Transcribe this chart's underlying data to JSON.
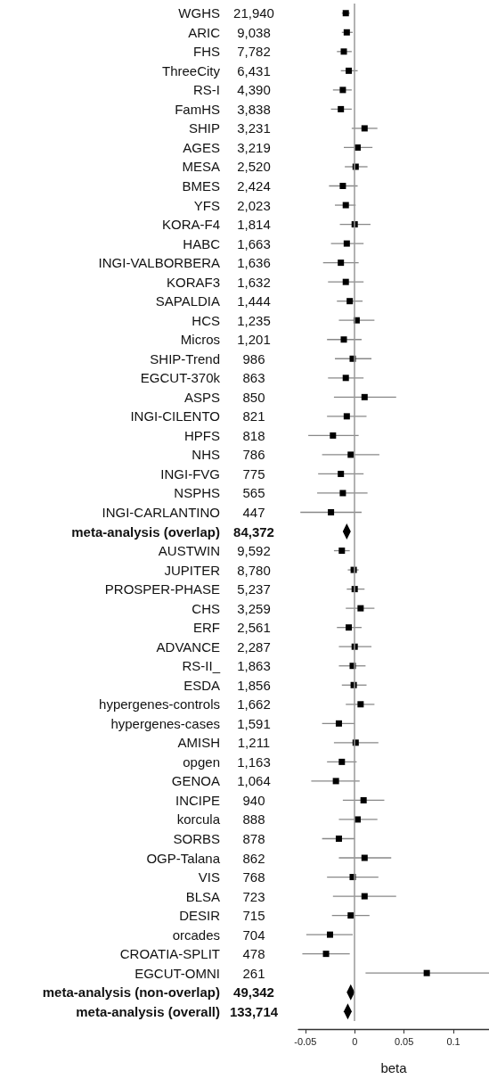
{
  "chart_data": {
    "type": "scatter",
    "orientation": "horizontal",
    "xlabel": "beta",
    "xlim": [
      -0.057,
      0.136
    ],
    "xticks": [
      -0.05,
      0,
      0.05,
      0.1
    ],
    "grid": false,
    "categories": [
      "WGHS",
      "ARIC",
      "FHS",
      "ThreeCity",
      "RS-I",
      "FamHS",
      "SHIP",
      "AGES",
      "MESA",
      "BMES",
      "YFS",
      "KORA-F4",
      "HABC",
      "INGI-VALBORBERA",
      "KORAF3",
      "SAPALDIA",
      "HCS",
      "Micros",
      "SHIP-Trend",
      "EGCUT-370k",
      "ASPS",
      "INGI-CILENTO",
      "HPFS",
      "NHS",
      "INGI-FVG",
      "NSPHS",
      "INGI-CARLANTINO",
      "meta-analysis (overlap)",
      "AUSTWIN",
      "JUPITER",
      "PROSPER-PHASE",
      "CHS",
      "ERF",
      "ADVANCE",
      "RS-II_",
      "ESDA",
      "hypergenes-controls",
      "hypergenes-cases",
      "AMISH",
      "opgen",
      "GENOA",
      "INCIPE",
      "korcula",
      "SORBS",
      "OGP-Talana",
      "VIS",
      "BLSA",
      "DESIR",
      "orcades",
      "CROATIA-SPLIT",
      "EGCUT-OMNI",
      "meta-analysis (non-overlap)",
      "meta-analysis (overall)"
    ],
    "annotations": [
      "21,940",
      "9,038",
      "7,782",
      "6,431",
      "4,390",
      "3,838",
      "3,231",
      "3,219",
      "2,520",
      "2,424",
      "2,023",
      "1,814",
      "1,663",
      "1,636",
      "1,632",
      "1,444",
      "1,235",
      "1,201",
      "986",
      "863",
      "850",
      "821",
      "818",
      "786",
      "775",
      "565",
      "447",
      "84,372",
      "9,592",
      "8,780",
      "5,237",
      "3,259",
      "2,561",
      "2,287",
      "1,863",
      "1,856",
      "1,662",
      "1,591",
      "1,211",
      "1,163",
      "1,064",
      "940",
      "888",
      "878",
      "862",
      "768",
      "723",
      "715",
      "704",
      "478",
      "261",
      "49,342",
      "133,714"
    ],
    "ref_lines": [
      {
        "axis": "x",
        "value": 0,
        "color": "#999999"
      }
    ],
    "series": [
      {
        "marker": "square",
        "color": "#000000",
        "values": [
          -0.009,
          -0.008,
          -0.011,
          -0.006,
          -0.012,
          -0.014,
          0.01,
          0.003,
          0.001,
          -0.012,
          -0.009,
          0,
          -0.008,
          -0.014,
          -0.009,
          -0.005,
          0.002,
          -0.011,
          -0.002,
          -0.009,
          0.01,
          -0.008,
          -0.022,
          -0.004,
          -0.014,
          -0.012,
          -0.024,
          null,
          -0.013,
          -0.001,
          0,
          0.006,
          -0.006,
          0,
          -0.002,
          -0.001,
          0.006,
          -0.016,
          0.001,
          -0.013,
          -0.019,
          0.009,
          0.003,
          -0.016,
          0.01,
          -0.002,
          0.01,
          -0.004,
          -0.025,
          -0.029,
          0.073,
          null,
          null
        ],
        "errors": [
          [
            -0.013,
            -0.005
          ],
          [
            -0.013,
            -0.002
          ],
          [
            -0.018,
            -0.003
          ],
          [
            -0.014,
            0.003
          ],
          [
            -0.022,
            -0.003
          ],
          [
            -0.024,
            -0.003
          ],
          [
            -0.003,
            0.023
          ],
          [
            -0.011,
            0.018
          ],
          [
            -0.01,
            0.013
          ],
          [
            -0.026,
            0.003
          ],
          [
            -0.02,
            0.001
          ],
          [
            -0.015,
            0.016
          ],
          [
            -0.024,
            0.009
          ],
          [
            -0.032,
            0.004
          ],
          [
            -0.027,
            0.009
          ],
          [
            -0.018,
            0.008
          ],
          [
            -0.016,
            0.02
          ],
          [
            -0.028,
            0.007
          ],
          [
            -0.02,
            0.017
          ],
          [
            -0.027,
            0.009
          ],
          [
            -0.021,
            0.042
          ],
          [
            -0.028,
            0.012
          ],
          [
            -0.047,
            0.004
          ],
          [
            -0.033,
            0.025
          ],
          [
            -0.037,
            0.009
          ],
          [
            -0.038,
            0.013
          ],
          [
            -0.055,
            0.007
          ],
          null,
          [
            -0.021,
            -0.005
          ],
          [
            -0.007,
            0.004
          ],
          [
            -0.008,
            0.01
          ],
          [
            -0.009,
            0.02
          ],
          [
            -0.018,
            0.007
          ],
          [
            -0.016,
            0.017
          ],
          [
            -0.016,
            0.011
          ],
          [
            -0.013,
            0.012
          ],
          [
            -0.009,
            0.02
          ],
          [
            -0.033,
            0
          ],
          [
            -0.021,
            0.024
          ],
          [
            -0.028,
            0.002
          ],
          [
            -0.044,
            0.005
          ],
          [
            -0.012,
            0.03
          ],
          [
            -0.016,
            0.023
          ],
          [
            -0.033,
            0
          ],
          [
            -0.016,
            0.037
          ],
          [
            -0.028,
            0.024
          ],
          [
            -0.022,
            0.042
          ],
          [
            -0.023,
            0.015
          ],
          [
            -0.049,
            -0.002
          ],
          [
            -0.053,
            -0.005
          ],
          [
            0.011,
            0.136
          ],
          null,
          null
        ]
      },
      {
        "marker": "diamond",
        "color": "#000000",
        "values": [
          null,
          null,
          null,
          null,
          null,
          null,
          null,
          null,
          null,
          null,
          null,
          null,
          null,
          null,
          null,
          null,
          null,
          null,
          null,
          null,
          null,
          null,
          null,
          null,
          null,
          null,
          null,
          -0.008,
          null,
          null,
          null,
          null,
          null,
          null,
          null,
          null,
          null,
          null,
          null,
          null,
          null,
          null,
          null,
          null,
          null,
          null,
          null,
          null,
          null,
          null,
          null,
          -0.004,
          -0.007
        ]
      }
    ]
  }
}
